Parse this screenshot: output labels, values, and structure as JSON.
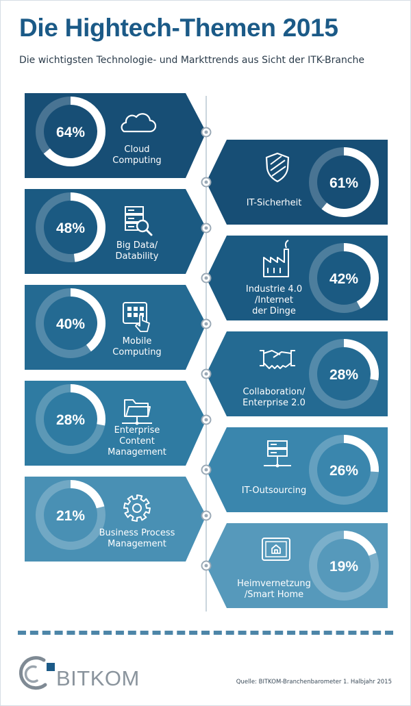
{
  "header": {
    "title": "Die Hightech-Themen 2015",
    "subtitle": "Die wichtigsten Technologie- und Markttrends aus Sicht der ITK-Branche"
  },
  "chart_data": {
    "type": "bar",
    "title": "Die Hightech-Themen 2015",
    "subtitle": "Die wichtigsten Technologie- und Markttrends aus Sicht der ITK-Branche",
    "value_unit": "%",
    "categories": [
      [
        "Cloud",
        "Computing"
      ],
      [
        "IT-Sicherheit"
      ],
      [
        "Big Data/",
        "Datability"
      ],
      [
        "Industrie 4.0",
        "/Internet",
        "der Dinge"
      ],
      [
        "Mobile",
        "Computing"
      ],
      [
        "Collaboration/",
        "Enterprise 2.0"
      ],
      [
        "Enterprise",
        "Content",
        "Management"
      ],
      [
        "IT-Outsourcing"
      ],
      [
        "Business Process",
        "Management"
      ],
      [
        "Heimvernetzung",
        "/Smart Home"
      ]
    ],
    "values": [
      64,
      61,
      48,
      42,
      40,
      28,
      28,
      26,
      21,
      19
    ],
    "value_labels": [
      "64%",
      "61%",
      "48%",
      "42%",
      "40%",
      "28%",
      "28%",
      "26%",
      "21%",
      "19%"
    ],
    "icons": [
      "cloud-icon",
      "shield-icon",
      "server-search-icon",
      "factory-icon",
      "tablet-touch-icon",
      "handshake-icon",
      "folder-network-icon",
      "server-network-icon",
      "gear-icon",
      "smart-home-icon"
    ],
    "colors": [
      "#174e75",
      "#174e75",
      "#1b5a82",
      "#1b5a82",
      "#246a92",
      "#246a92",
      "#2f7ba2",
      "#3a86ad",
      "#4990b4",
      "#5699bb"
    ]
  },
  "footer": {
    "logo_text": "BITKOM",
    "source": "Quelle: BITKOM-Branchenbarometer 1. Halbjahr 2015"
  }
}
